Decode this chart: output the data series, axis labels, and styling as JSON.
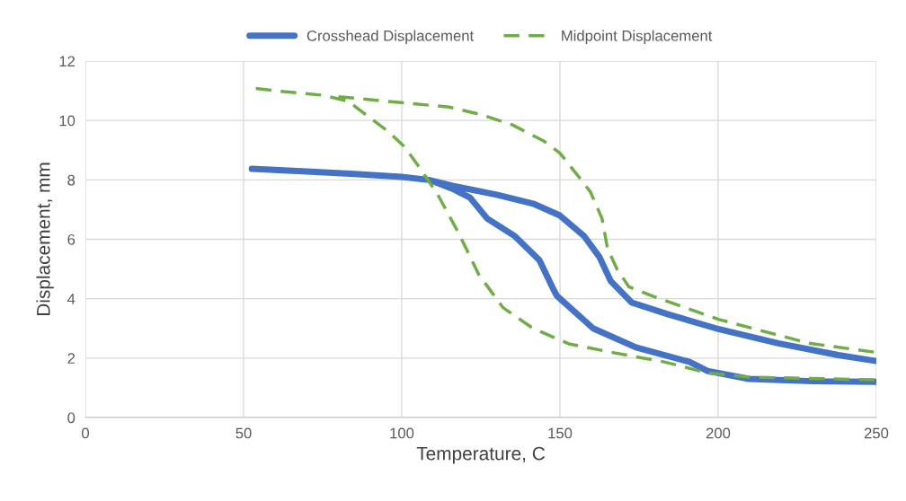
{
  "chart_data": {
    "type": "line",
    "xlabel": "Temperature, C",
    "ylabel": "Displacement, mm",
    "xlim": [
      0,
      250
    ],
    "xticks": [
      0,
      50,
      100,
      150,
      200,
      250
    ],
    "ylim": [
      0,
      12
    ],
    "yticks": [
      0,
      2,
      4,
      6,
      8,
      10,
      12
    ],
    "grid": true,
    "legend": "top",
    "series": [
      {
        "name": "Crosshead Displacement",
        "color": "#4472c4",
        "line_style": "solid",
        "x": [
          52.6,
          70,
          85,
          100,
          108.5,
          116,
          130,
          141.5,
          150,
          157.7,
          162.5,
          166,
          172.7,
          184,
          200.3,
          219,
          238,
          250,
          null,
          250,
          230,
          209.7,
          196.6,
          191,
          174,
          160.5,
          149,
          148,
          143.5,
          135.8,
          127,
          121.6,
          116,
          110
        ],
        "values": [
          8.37,
          8.28,
          8.2,
          8.1,
          8.0,
          7.8,
          7.5,
          7.2,
          6.8,
          6.1,
          5.4,
          4.6,
          3.87,
          3.48,
          2.97,
          2.5,
          2.1,
          1.9,
          null,
          1.2,
          1.22,
          1.3,
          1.57,
          1.87,
          2.36,
          3.0,
          4.1,
          4.3,
          5.3,
          6.1,
          6.7,
          7.4,
          7.7,
          7.95
        ]
      },
      {
        "name": "Midpoint Displacement",
        "color": "#70ad47",
        "line_style": "dashed",
        "x": [
          249.4,
          209.7,
          196.6,
          183,
          167,
          152.8,
          141.5,
          132,
          124.4,
          118,
          111.4,
          105.7,
          101,
          96,
          88.6,
          83,
          75,
          60,
          52,
          null,
          80,
          100,
          115,
          125,
          135,
          145,
          150,
          156.7,
          159.6,
          163.3,
          165,
          168,
          171.8,
          179.5,
          200.3,
          228.7,
          249.4
        ],
        "values": [
          1.27,
          1.36,
          1.5,
          1.87,
          2.18,
          2.48,
          3.0,
          3.7,
          4.8,
          6.2,
          7.5,
          8.4,
          9.1,
          9.6,
          10.2,
          10.65,
          10.85,
          11.0,
          11.1,
          null,
          10.8,
          10.6,
          10.45,
          10.2,
          9.85,
          9.3,
          8.9,
          8.0,
          7.6,
          6.7,
          5.7,
          5.0,
          4.4,
          4.08,
          3.3,
          2.5,
          2.2
        ]
      }
    ]
  }
}
